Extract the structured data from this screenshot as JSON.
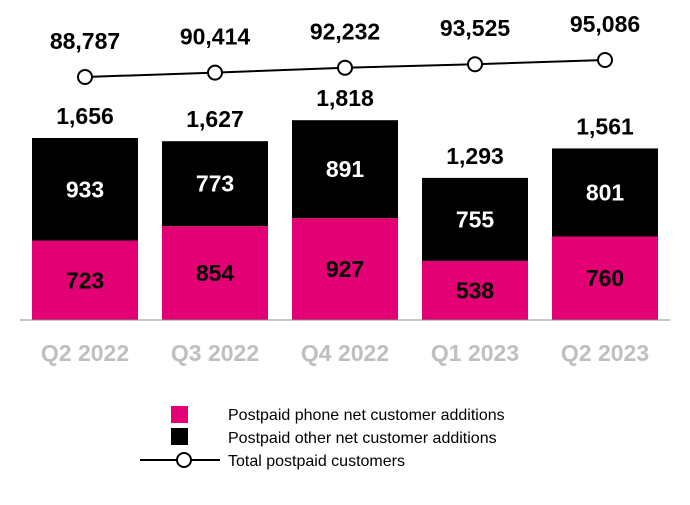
{
  "chart_data": {
    "type": "bar",
    "stacked": true,
    "categories": [
      "Q2 2022",
      "Q3 2022",
      "Q4 2022",
      "Q1 2023",
      "Q2 2023"
    ],
    "series": [
      {
        "name": "Postpaid phone net customer additions",
        "values": [
          723,
          854,
          927,
          538,
          760
        ],
        "color": "#E20074"
      },
      {
        "name": "Postpaid other net customer additions",
        "values": [
          933,
          773,
          891,
          755,
          801
        ],
        "color": "#000000"
      }
    ],
    "totals": [
      1656,
      1627,
      1818,
      1293,
      1561
    ],
    "line_series": {
      "name": "Total postpaid customers",
      "values": [
        88787,
        90414,
        92232,
        93525,
        95086
      ],
      "color": "#000000",
      "marker": "open-circle"
    },
    "total_labels": [
      "1,656",
      "1,627",
      "1,818",
      "1,293",
      "1,561"
    ],
    "line_labels": [
      "88,787",
      "90,414",
      "92,232",
      "93,525",
      "95,086"
    ],
    "category_label_color": "#BFBFBF",
    "grid": false,
    "legend_placement": "bottom"
  }
}
